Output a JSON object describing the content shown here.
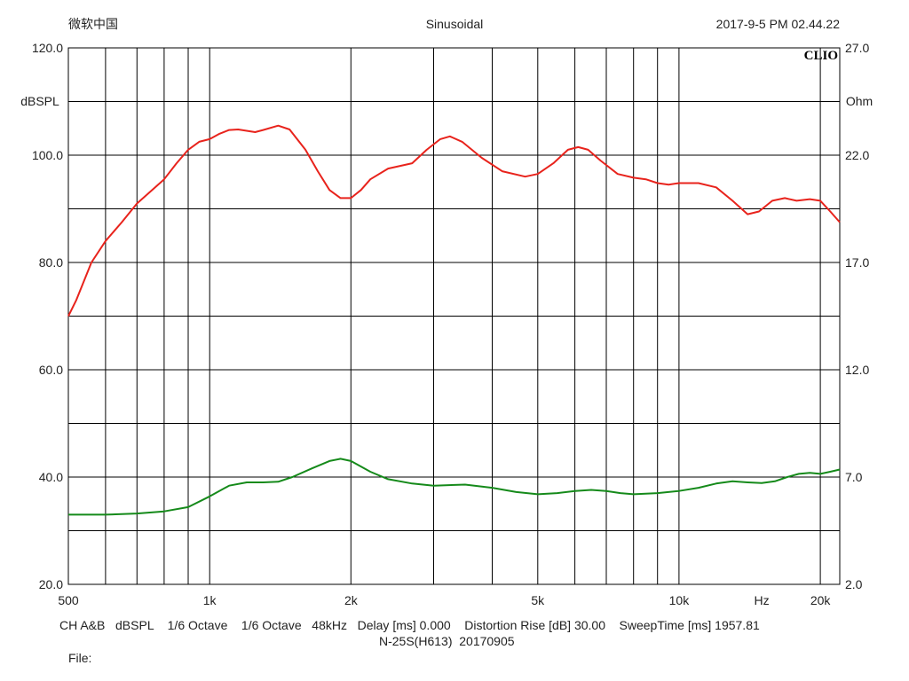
{
  "header": {
    "left": "微软中国",
    "center": "Sinusoidal",
    "right": "2017-9-5 PM 02.44.22",
    "brand": "CLIO"
  },
  "chart_data": {
    "type": "line",
    "title": "Sinusoidal",
    "x_scale": "log",
    "xlim": [
      500,
      22000
    ],
    "x_ticks": [
      {
        "v": 500,
        "label": "500"
      },
      {
        "v": 1000,
        "label": "1k"
      },
      {
        "v": 2000,
        "label": "2k"
      },
      {
        "v": 5000,
        "label": "5k"
      },
      {
        "v": 10000,
        "label": "10k"
      },
      {
        "v": 15000,
        "label": "Hz"
      },
      {
        "v": 20000,
        "label": "20k"
      }
    ],
    "x_gridlines": [
      600,
      700,
      800,
      900,
      1000,
      2000,
      3000,
      4000,
      5000,
      6000,
      7000,
      8000,
      9000,
      10000,
      20000
    ],
    "y_left": {
      "label": "dBSPL",
      "ylim": [
        20,
        120
      ],
      "ticks": [
        {
          "v": 120,
          "label": "120.0"
        },
        {
          "v": 100,
          "label": "100.0"
        },
        {
          "v": 80,
          "label": "80.0"
        },
        {
          "v": 60,
          "label": "60.0"
        },
        {
          "v": 40,
          "label": "40.0"
        },
        {
          "v": 20,
          "label": "20.0"
        }
      ]
    },
    "y_right": {
      "label": "Ohm",
      "ylim": [
        2,
        27
      ],
      "ticks": [
        {
          "v": 27,
          "label": "27.0"
        },
        {
          "v": 22,
          "label": "22.0"
        },
        {
          "v": 17,
          "label": "17.0"
        },
        {
          "v": 12,
          "label": "12.0"
        },
        {
          "v": 7,
          "label": "7.0"
        },
        {
          "v": 2,
          "label": "2.0"
        }
      ]
    },
    "grid": true,
    "y_gridlines": [
      110,
      100,
      90,
      80,
      70,
      60,
      50,
      40,
      30
    ],
    "series": [
      {
        "color": "#e8231c",
        "axis": "left",
        "points": [
          [
            500,
            70
          ],
          [
            520,
            73
          ],
          [
            560,
            80
          ],
          [
            600,
            84
          ],
          [
            650,
            87.5
          ],
          [
            700,
            91
          ],
          [
            800,
            95.5
          ],
          [
            850,
            98.5
          ],
          [
            900,
            101
          ],
          [
            950,
            102.5
          ],
          [
            1000,
            103
          ],
          [
            1050,
            104
          ],
          [
            1100,
            104.7
          ],
          [
            1150,
            104.8
          ],
          [
            1250,
            104.3
          ],
          [
            1300,
            104.7
          ],
          [
            1400,
            105.5
          ],
          [
            1480,
            104.8
          ],
          [
            1600,
            101
          ],
          [
            1700,
            97
          ],
          [
            1800,
            93.5
          ],
          [
            1900,
            92
          ],
          [
            2000,
            92
          ],
          [
            2100,
            93.5
          ],
          [
            2200,
            95.5
          ],
          [
            2400,
            97.5
          ],
          [
            2700,
            98.5
          ],
          [
            2900,
            101
          ],
          [
            3100,
            103
          ],
          [
            3250,
            103.5
          ],
          [
            3450,
            102.5
          ],
          [
            3800,
            99.5
          ],
          [
            4200,
            97
          ],
          [
            4700,
            96
          ],
          [
            5000,
            96.5
          ],
          [
            5400,
            98.5
          ],
          [
            5800,
            101
          ],
          [
            6100,
            101.5
          ],
          [
            6400,
            101
          ],
          [
            6800,
            99
          ],
          [
            7400,
            96.5
          ],
          [
            8000,
            95.8
          ],
          [
            8500,
            95.5
          ],
          [
            9000,
            94.8
          ],
          [
            9500,
            94.5
          ],
          [
            10000,
            94.8
          ],
          [
            11000,
            94.8
          ],
          [
            12000,
            94
          ],
          [
            13000,
            91.5
          ],
          [
            14000,
            89
          ],
          [
            14800,
            89.5
          ],
          [
            15800,
            91.5
          ],
          [
            16800,
            92
          ],
          [
            17800,
            91.5
          ],
          [
            19000,
            91.8
          ],
          [
            20000,
            91.5
          ],
          [
            21000,
            89.5
          ],
          [
            22000,
            87.5
          ]
        ]
      },
      {
        "color": "#158a1a",
        "axis": "right",
        "points": [
          [
            500,
            5.25
          ],
          [
            600,
            5.25
          ],
          [
            700,
            5.3
          ],
          [
            800,
            5.4
          ],
          [
            900,
            5.6
          ],
          [
            1000,
            6.1
          ],
          [
            1100,
            6.6
          ],
          [
            1200,
            6.75
          ],
          [
            1300,
            6.75
          ],
          [
            1400,
            6.78
          ],
          [
            1500,
            7
          ],
          [
            1650,
            7.4
          ],
          [
            1800,
            7.75
          ],
          [
            1900,
            7.85
          ],
          [
            2000,
            7.75
          ],
          [
            2200,
            7.25
          ],
          [
            2400,
            6.9
          ],
          [
            2700,
            6.7
          ],
          [
            3000,
            6.6
          ],
          [
            3500,
            6.65
          ],
          [
            4000,
            6.5
          ],
          [
            4500,
            6.3
          ],
          [
            5000,
            6.2
          ],
          [
            5500,
            6.25
          ],
          [
            6000,
            6.35
          ],
          [
            6500,
            6.4
          ],
          [
            7000,
            6.35
          ],
          [
            7500,
            6.25
          ],
          [
            8000,
            6.2
          ],
          [
            9000,
            6.25
          ],
          [
            10000,
            6.35
          ],
          [
            11000,
            6.5
          ],
          [
            12000,
            6.7
          ],
          [
            13000,
            6.8
          ],
          [
            14000,
            6.75
          ],
          [
            15000,
            6.72
          ],
          [
            16000,
            6.8
          ],
          [
            17000,
            7.0
          ],
          [
            18000,
            7.15
          ],
          [
            19000,
            7.2
          ],
          [
            20000,
            7.15
          ],
          [
            21000,
            7.25
          ],
          [
            22000,
            7.35
          ]
        ]
      }
    ]
  },
  "footer": {
    "line1": "CH A&B   dBSPL    1/6 Octave    1/6 Octave   48kHz   Delay [ms] 0.000    Distortion Rise [dB] 30.00    SweepTime [ms] 1957.81",
    "line2": "N-25S(H613)  20170905",
    "line3": "File:"
  }
}
